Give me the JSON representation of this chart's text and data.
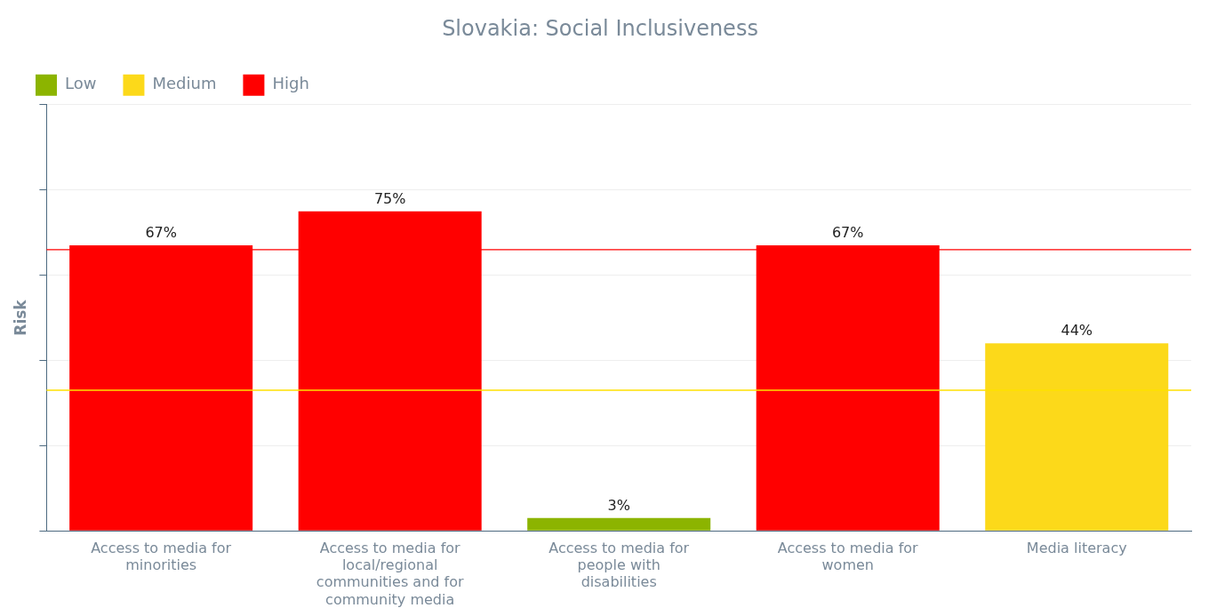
{
  "chart_data": {
    "type": "bar",
    "title": "Slovakia: Social Inclusiveness",
    "ylabel": "Risk",
    "categories": [
      "Access to media for minorities",
      "Access to media for local/regional communities and for community media",
      "Access to media for people with disabilities",
      "Access to media for women",
      "Media literacy"
    ],
    "series": [
      {
        "name": "Low",
        "color": "#8cb400",
        "values": [
          null,
          null,
          3,
          null,
          null
        ],
        "value_labels": [
          null,
          null,
          "3%",
          null,
          null
        ]
      },
      {
        "name": "Medium",
        "color": "#fcd91a",
        "values": [
          null,
          null,
          null,
          null,
          44
        ],
        "value_labels": [
          null,
          null,
          null,
          null,
          "44%"
        ]
      },
      {
        "name": "High",
        "color": "#ff0000",
        "values": [
          67,
          75,
          null,
          67,
          null
        ],
        "value_labels": [
          "67%",
          "75%",
          null,
          "67%",
          null
        ]
      }
    ],
    "stacked": true,
    "ylim": [
      0,
      100
    ],
    "yticks": [
      {
        "value": 0,
        "label": null
      },
      {
        "value": 20,
        "label": null
      },
      {
        "value": 40,
        "label": null
      },
      {
        "value": 60,
        "label": null
      },
      {
        "value": 80,
        "label": null
      },
      {
        "value": 100,
        "label": null
      }
    ],
    "tick_labels": "x",
    "grid": "y",
    "legend": "top left",
    "ref_lines": [
      {
        "axis": "y",
        "value": 66,
        "label": null,
        "color": "#ff0000"
      },
      {
        "axis": "y",
        "value": 33,
        "label": null,
        "color": "#ffe000"
      }
    ]
  }
}
